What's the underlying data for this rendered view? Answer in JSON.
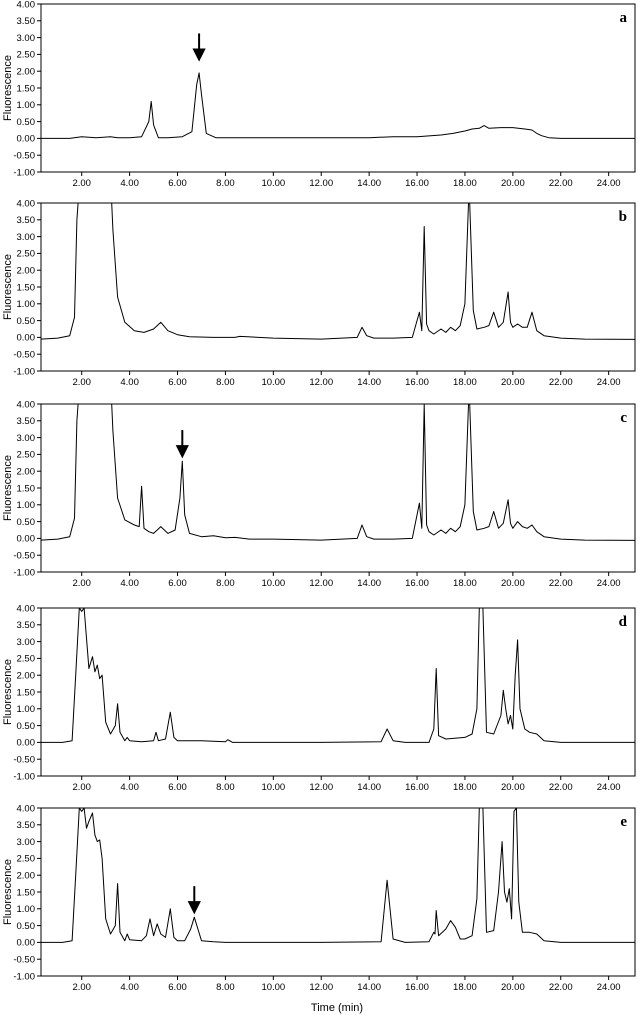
{
  "xlabel": "Time (min)",
  "chart_data": [
    {
      "type": "line",
      "panel": "a",
      "ylabel": "Fluorescence",
      "xlim": [
        0.3,
        25.1
      ],
      "ylim": [
        -1.0,
        4.0
      ],
      "x_ticks": [
        2,
        4,
        6,
        8,
        10,
        12,
        14,
        16,
        18,
        20,
        22,
        24
      ],
      "x_tick_labels": [
        "2.00",
        "4.00",
        "6.00",
        "8.00",
        "10.00",
        "12.00",
        "14.00",
        "16.00",
        "18.00",
        "20.00",
        "22.00",
        "24.00"
      ],
      "y_ticks": [
        -1,
        -0.5,
        0,
        0.5,
        1,
        1.5,
        2,
        2.5,
        3,
        3.5,
        4
      ],
      "y_tick_labels": [
        "-1.00",
        "-0.50",
        "0.00",
        "0.50",
        "1.00",
        "1.50",
        "2.00",
        "2.50",
        "3.00",
        "3.50",
        "4.00"
      ],
      "arrow_at": [
        6.9,
        2.35
      ],
      "series": [
        {
          "x": [
            0.3,
            1.5,
            2.0,
            2.6,
            3.2,
            3.5,
            4.0,
            4.5,
            4.8,
            4.9,
            5.0,
            5.2,
            5.6,
            6.2,
            6.6,
            6.8,
            6.9,
            7.0,
            7.2,
            7.6,
            8.5,
            10.0,
            12.0,
            14.0,
            15.0,
            16.0,
            17.0,
            17.5,
            18.0,
            18.3,
            18.6,
            18.8,
            19.0,
            19.5,
            20.0,
            20.5,
            20.8,
            21.0,
            21.2,
            21.5,
            22.0,
            23.0,
            25.1
          ],
          "y": [
            0.0,
            0.0,
            0.05,
            0.02,
            0.05,
            0.02,
            0.02,
            0.05,
            0.5,
            1.1,
            0.4,
            0.02,
            0.02,
            0.05,
            0.2,
            1.6,
            1.95,
            1.3,
            0.15,
            0.02,
            0.02,
            0.02,
            0.02,
            0.02,
            0.05,
            0.05,
            0.1,
            0.15,
            0.22,
            0.28,
            0.3,
            0.38,
            0.3,
            0.32,
            0.32,
            0.28,
            0.25,
            0.15,
            0.08,
            0.02,
            0.0,
            0.0,
            0.0
          ]
        }
      ]
    },
    {
      "type": "line",
      "panel": "b",
      "ylabel": "Fluorescence",
      "xlim": [
        0.3,
        25.1
      ],
      "ylim": [
        -1.0,
        4.0
      ],
      "x_ticks": [
        2,
        4,
        6,
        8,
        10,
        12,
        14,
        16,
        18,
        20,
        22,
        24
      ],
      "x_tick_labels": [
        "2.00",
        "4.00",
        "6.00",
        "8.00",
        "10.00",
        "12.00",
        "14.00",
        "16.00",
        "18.00",
        "20.00",
        "22.00",
        "24.00"
      ],
      "y_ticks": [
        -1,
        -0.5,
        0,
        0.5,
        1,
        1.5,
        2,
        2.5,
        3,
        3.5,
        4
      ],
      "y_tick_labels": [
        "-1.00",
        "-0.50",
        "0.00",
        "0.50",
        "1.00",
        "1.50",
        "2.00",
        "2.50",
        "3.00",
        "3.50",
        "4.00"
      ],
      "series": [
        {
          "x": [
            0.3,
            1.0,
            1.5,
            1.7,
            1.8,
            1.85,
            3.25,
            3.3,
            3.5,
            3.8,
            4.2,
            4.6,
            5.0,
            5.3,
            5.6,
            6.0,
            6.5,
            7.5,
            8.4,
            8.6,
            10.0,
            12.0,
            13.5,
            13.7,
            13.9,
            14.2,
            15.0,
            15.8,
            16.1,
            16.2,
            16.3,
            16.4,
            16.5,
            16.7,
            17.0,
            17.2,
            17.4,
            17.6,
            17.8,
            18.0,
            18.15,
            18.2,
            18.35,
            18.5,
            18.8,
            19.0,
            19.2,
            19.4,
            19.6,
            19.8,
            19.9,
            20.0,
            20.2,
            20.4,
            20.6,
            20.8,
            21.0,
            21.3,
            22.0,
            23.0,
            25.1
          ],
          "y": [
            -0.05,
            -0.02,
            0.05,
            0.6,
            3.5,
            4.0,
            4.0,
            3.2,
            1.2,
            0.45,
            0.2,
            0.15,
            0.25,
            0.45,
            0.2,
            0.08,
            0.02,
            0.0,
            0.0,
            0.03,
            -0.02,
            -0.05,
            0.0,
            0.3,
            0.05,
            -0.02,
            -0.02,
            0.0,
            0.75,
            0.2,
            3.3,
            0.4,
            0.2,
            0.1,
            0.25,
            0.15,
            0.3,
            0.2,
            0.35,
            1.0,
            4.0,
            4.0,
            0.8,
            0.25,
            0.3,
            0.35,
            0.75,
            0.3,
            0.45,
            1.35,
            0.45,
            0.3,
            0.4,
            0.3,
            0.3,
            0.75,
            0.2,
            0.05,
            -0.02,
            -0.05,
            -0.06
          ]
        }
      ]
    },
    {
      "type": "line",
      "panel": "c",
      "ylabel": "Fluorescence",
      "xlim": [
        0.3,
        25.1
      ],
      "ylim": [
        -1.0,
        4.0
      ],
      "x_ticks": [
        2,
        4,
        6,
        8,
        10,
        12,
        14,
        16,
        18,
        20,
        22,
        24
      ],
      "x_tick_labels": [
        "2.00",
        "4.00",
        "6.00",
        "8.00",
        "10.00",
        "12.00",
        "14.00",
        "16.00",
        "18.00",
        "20.00",
        "22.00",
        "24.00"
      ],
      "y_ticks": [
        -1,
        -0.5,
        0,
        0.5,
        1,
        1.5,
        2,
        2.5,
        3,
        3.5,
        4
      ],
      "y_tick_labels": [
        "-1.00",
        "-0.50",
        "0.00",
        "0.50",
        "1.00",
        "1.50",
        "2.00",
        "2.50",
        "3.00",
        "3.50",
        "4.00"
      ],
      "arrow_at": [
        6.2,
        2.45
      ],
      "series": [
        {
          "x": [
            0.3,
            1.0,
            1.5,
            1.7,
            1.8,
            1.85,
            3.25,
            3.3,
            3.5,
            3.8,
            4.2,
            4.4,
            4.5,
            4.6,
            4.8,
            5.0,
            5.3,
            5.6,
            5.9,
            6.1,
            6.2,
            6.3,
            6.5,
            7.0,
            7.5,
            8.0,
            8.4,
            9.0,
            10.0,
            12.0,
            13.5,
            13.7,
            13.9,
            14.2,
            15.0,
            15.8,
            16.1,
            16.2,
            16.3,
            16.4,
            16.5,
            16.7,
            17.0,
            17.2,
            17.4,
            17.6,
            17.8,
            18.0,
            18.15,
            18.2,
            18.35,
            18.5,
            18.8,
            19.0,
            19.2,
            19.4,
            19.6,
            19.8,
            19.9,
            20.0,
            20.2,
            20.4,
            20.6,
            20.8,
            21.0,
            21.3,
            22.0,
            23.0,
            25.1
          ],
          "y": [
            -0.05,
            -0.02,
            0.05,
            0.6,
            3.5,
            4.0,
            4.0,
            3.2,
            1.2,
            0.55,
            0.4,
            0.35,
            1.55,
            0.3,
            0.2,
            0.15,
            0.35,
            0.15,
            0.25,
            1.2,
            2.3,
            0.7,
            0.15,
            0.05,
            0.08,
            0.02,
            0.03,
            -0.02,
            -0.02,
            -0.05,
            0.0,
            0.4,
            0.05,
            -0.02,
            -0.02,
            0.0,
            1.05,
            0.3,
            4.0,
            0.4,
            0.2,
            0.1,
            0.25,
            0.15,
            0.3,
            0.2,
            0.35,
            1.0,
            4.0,
            4.0,
            0.8,
            0.25,
            0.3,
            0.35,
            0.8,
            0.3,
            0.45,
            1.15,
            0.45,
            0.3,
            0.5,
            0.35,
            0.3,
            0.4,
            0.2,
            0.05,
            -0.02,
            -0.05,
            -0.06
          ]
        }
      ]
    },
    {
      "type": "line",
      "panel": "d",
      "ylabel": "Fluorescence",
      "xlim": [
        0.3,
        25.1
      ],
      "ylim": [
        -1.0,
        4.0
      ],
      "x_ticks": [
        2,
        4,
        6,
        8,
        10,
        12,
        14,
        16,
        18,
        20,
        22,
        24
      ],
      "x_tick_labels": [
        "2.00",
        "4.00",
        "6.00",
        "8.00",
        "10.00",
        "12.00",
        "14.00",
        "16.00",
        "18.00",
        "20.00",
        "22.00",
        "24.00"
      ],
      "y_ticks": [
        -1,
        -0.5,
        0,
        0.5,
        1,
        1.5,
        2,
        2.5,
        3,
        3.5,
        4
      ],
      "y_tick_labels": [
        "-1.00",
        "-0.50",
        "0.00",
        "0.50",
        "1.00",
        "1.50",
        "2.00",
        "2.50",
        "3.00",
        "3.50",
        "4.00"
      ],
      "series": [
        {
          "x": [
            0.3,
            1.2,
            1.6,
            1.75,
            1.9,
            2.0,
            2.1,
            2.2,
            2.3,
            2.45,
            2.55,
            2.65,
            2.75,
            2.85,
            3.0,
            3.2,
            3.4,
            3.5,
            3.6,
            3.8,
            3.9,
            4.0,
            4.5,
            5.0,
            5.1,
            5.2,
            5.5,
            5.7,
            5.85,
            6.0,
            7.0,
            8.0,
            8.1,
            8.3,
            10.0,
            12.0,
            14.5,
            14.75,
            15.0,
            15.5,
            16.5,
            16.7,
            16.8,
            16.9,
            17.2,
            18.0,
            18.3,
            18.5,
            18.6,
            18.75,
            18.9,
            19.2,
            19.5,
            19.6,
            19.7,
            19.8,
            19.9,
            20.0,
            20.1,
            20.2,
            20.3,
            20.5,
            20.7,
            21.0,
            21.3,
            22.0,
            25.1
          ],
          "y": [
            0.0,
            0.0,
            0.05,
            2.0,
            4.0,
            3.9,
            4.0,
            3.1,
            2.2,
            2.55,
            2.1,
            2.3,
            1.9,
            2.0,
            0.6,
            0.25,
            0.5,
            1.15,
            0.3,
            0.05,
            0.15,
            0.05,
            0.02,
            0.05,
            0.3,
            0.05,
            0.1,
            0.9,
            0.15,
            0.05,
            0.05,
            0.02,
            0.08,
            0.0,
            0.0,
            0.0,
            0.02,
            0.4,
            0.05,
            0.0,
            0.0,
            0.4,
            2.2,
            0.2,
            0.1,
            0.15,
            0.25,
            1.0,
            4.0,
            4.0,
            0.3,
            0.25,
            0.8,
            1.55,
            1.0,
            0.55,
            0.8,
            0.4,
            2.0,
            3.05,
            1.0,
            0.4,
            0.3,
            0.25,
            0.05,
            0.0,
            0.0
          ]
        }
      ]
    },
    {
      "type": "line",
      "panel": "e",
      "ylabel": "Fluorescence",
      "xlim": [
        0.3,
        25.1
      ],
      "ylim": [
        -1.0,
        4.0
      ],
      "x_ticks": [
        2,
        4,
        6,
        8,
        10,
        12,
        14,
        16,
        18,
        20,
        22,
        24
      ],
      "x_tick_labels": [
        "2.00",
        "4.00",
        "6.00",
        "8.00",
        "10.00",
        "12.00",
        "14.00",
        "16.00",
        "18.00",
        "20.00",
        "22.00",
        "24.00"
      ],
      "y_ticks": [
        -1,
        -0.5,
        0,
        0.5,
        1,
        1.5,
        2,
        2.5,
        3,
        3.5,
        4
      ],
      "y_tick_labels": [
        "-1.00",
        "-0.50",
        "0.00",
        "0.50",
        "1.00",
        "1.50",
        "2.00",
        "2.50",
        "3.00",
        "3.50",
        "4.00"
      ],
      "arrow_at": [
        6.7,
        0.9
      ],
      "series": [
        {
          "x": [
            0.3,
            1.2,
            1.6,
            1.75,
            1.9,
            2.0,
            2.1,
            2.2,
            2.3,
            2.45,
            2.55,
            2.65,
            2.75,
            2.85,
            3.0,
            3.2,
            3.4,
            3.5,
            3.6,
            3.8,
            3.9,
            4.0,
            4.5,
            4.7,
            4.85,
            5.0,
            5.15,
            5.3,
            5.5,
            5.7,
            5.85,
            6.0,
            6.3,
            6.55,
            6.7,
            6.85,
            7.0,
            7.5,
            8.0,
            10.0,
            12.0,
            14.5,
            14.75,
            15.0,
            15.5,
            16.5,
            16.7,
            16.75,
            16.8,
            16.9,
            17.2,
            17.4,
            17.6,
            17.8,
            18.0,
            18.3,
            18.5,
            18.6,
            18.75,
            18.9,
            19.2,
            19.4,
            19.55,
            19.65,
            19.75,
            19.85,
            19.95,
            20.05,
            20.15,
            20.25,
            20.4,
            20.7,
            21.0,
            21.3,
            22.0,
            25.1
          ],
          "y": [
            0.0,
            0.0,
            0.05,
            2.0,
            4.0,
            3.9,
            4.0,
            3.4,
            3.6,
            3.85,
            3.2,
            3.0,
            3.05,
            2.5,
            0.7,
            0.25,
            0.5,
            1.75,
            0.3,
            0.05,
            0.25,
            0.08,
            0.05,
            0.2,
            0.7,
            0.2,
            0.55,
            0.25,
            0.15,
            1.0,
            0.15,
            0.05,
            0.05,
            0.4,
            0.75,
            0.4,
            0.05,
            0.02,
            0.0,
            0.0,
            0.0,
            0.02,
            1.85,
            0.1,
            0.0,
            0.02,
            0.3,
            0.25,
            0.95,
            0.2,
            0.4,
            0.65,
            0.45,
            0.1,
            0.1,
            0.2,
            1.3,
            4.0,
            4.0,
            0.3,
            0.35,
            1.5,
            3.0,
            1.5,
            1.2,
            1.6,
            0.7,
            3.9,
            4.0,
            1.2,
            0.3,
            0.3,
            0.25,
            0.05,
            0.0,
            0.0
          ]
        }
      ]
    }
  ]
}
